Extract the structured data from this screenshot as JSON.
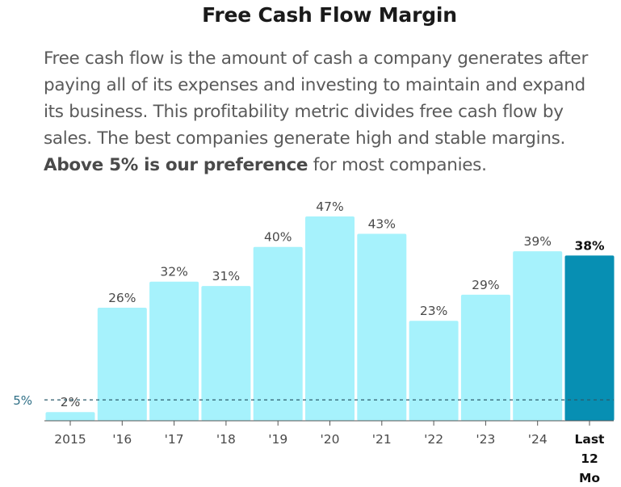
{
  "header": {
    "title": "Free Cash Flow Margin",
    "desc_part1": "Free cash flow is the amount of cash a company generates after paying all of its expenses and investing to maintain and expand its business. This profitability metric divides free cash flow by sales. The best companies generate high and stable margins. ",
    "desc_bold": "Above 5% is our preference",
    "desc_part2": " for most companies."
  },
  "chart_data": {
    "type": "bar",
    "categories": [
      "2015",
      "'16",
      "'17",
      "'18",
      "'19",
      "'20",
      "'21",
      "'22",
      "'23",
      "'24",
      "Last 12 Mo"
    ],
    "category_lines": [
      [
        "2015"
      ],
      [
        "'16"
      ],
      [
        "'17"
      ],
      [
        "'18"
      ],
      [
        "'19"
      ],
      [
        "'20"
      ],
      [
        "'21"
      ],
      [
        "'22"
      ],
      [
        "'23"
      ],
      [
        "'24"
      ],
      [
        "Last",
        "12",
        "Mo"
      ]
    ],
    "values": [
      2,
      26,
      32,
      31,
      40,
      47,
      43,
      23,
      29,
      39,
      38
    ],
    "value_labels": [
      "2%",
      "26%",
      "32%",
      "31%",
      "40%",
      "47%",
      "43%",
      "23%",
      "29%",
      "39%",
      "38%"
    ],
    "highlight_index": 10,
    "reference_line": {
      "value": 5,
      "label": "5%"
    },
    "ylim": [
      0,
      47
    ],
    "xlabel": "",
    "ylabel": "",
    "colors": {
      "bar": "#a6f2fc",
      "bar_highlight": "#078fb3",
      "reference": "#2a5a6a",
      "axis": "#555555"
    }
  }
}
